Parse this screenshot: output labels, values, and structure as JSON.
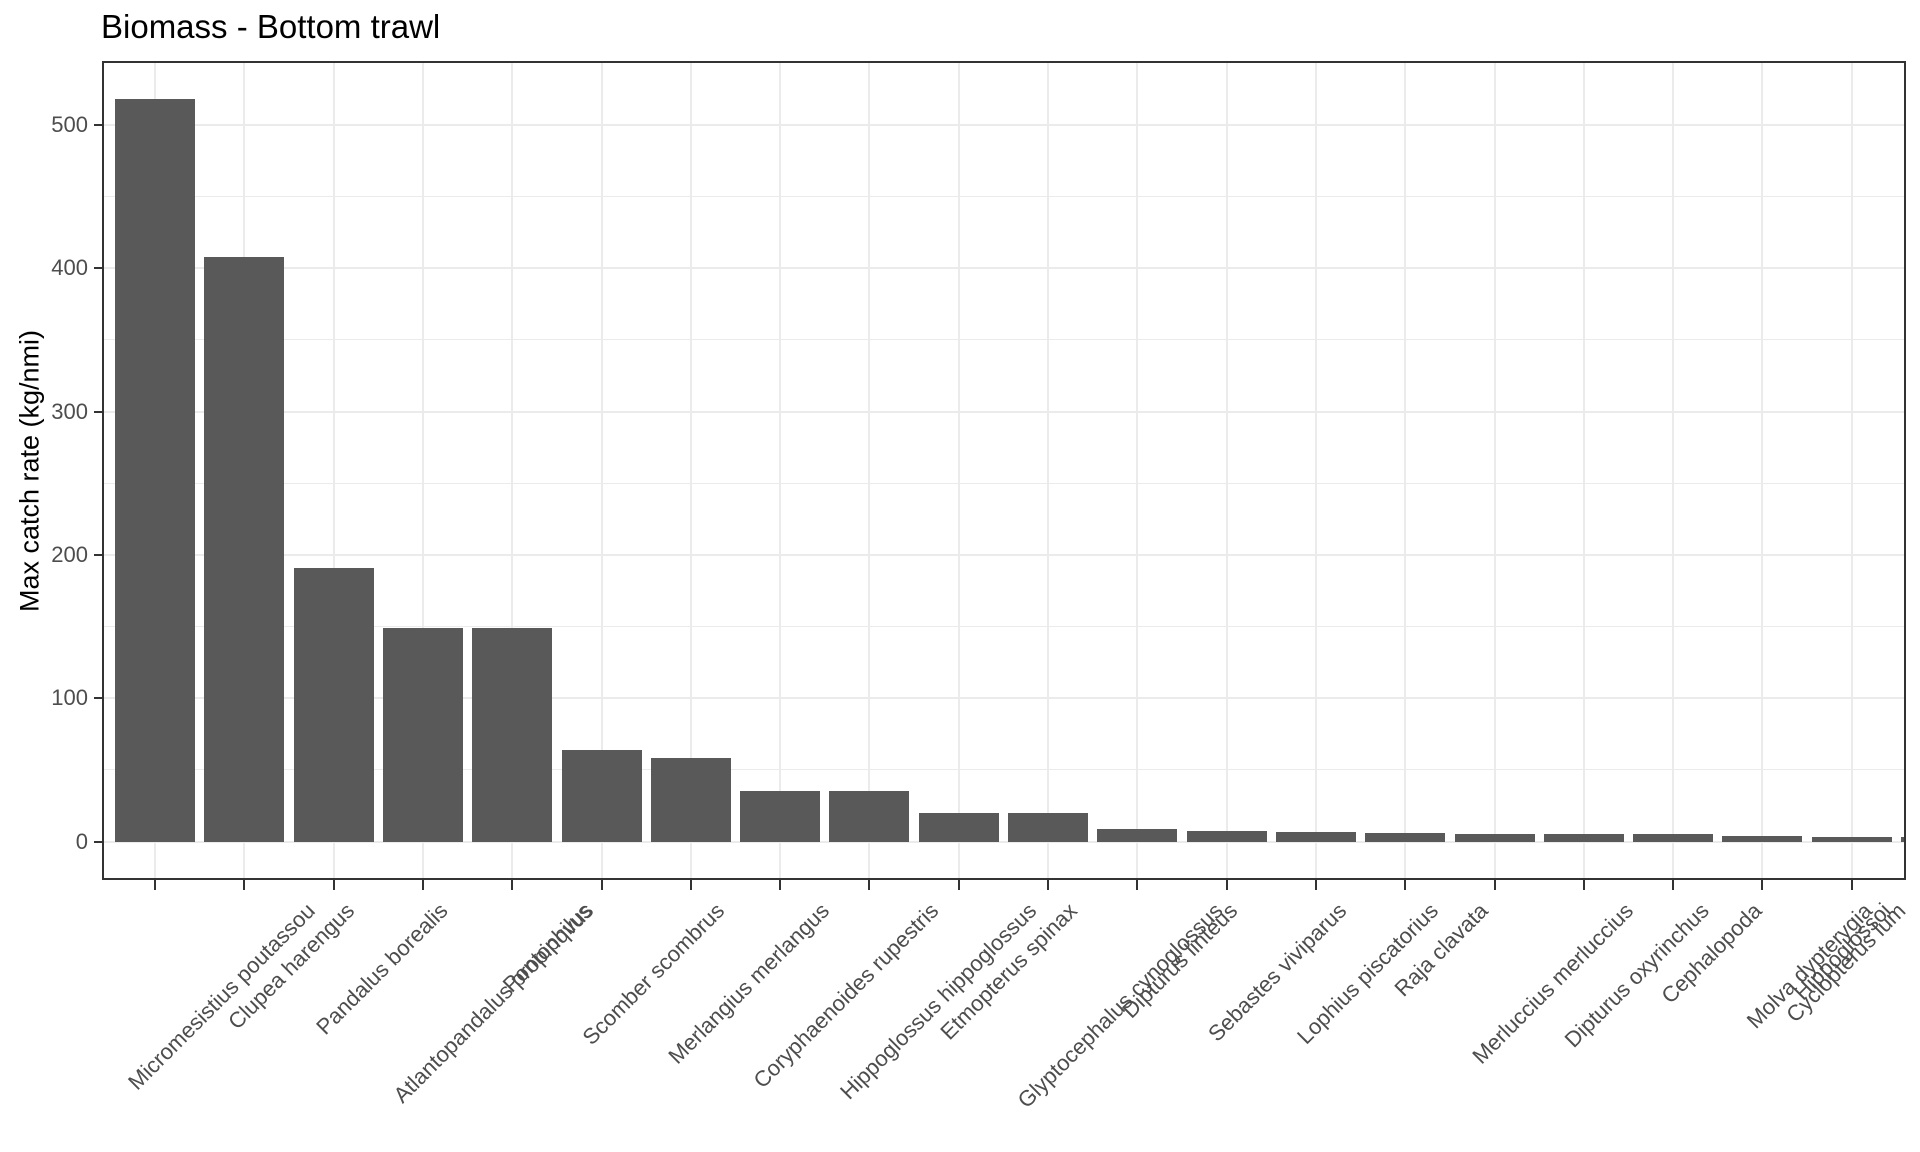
{
  "title": "Biomass - Bottom trawl",
  "y_axis_title": "Max catch rate (kg/nmi)",
  "colors": {
    "bar_fill": "#595959",
    "grid": "#ebebeb",
    "panel_border": "#333333",
    "axis_text": "#4d4d4d",
    "title_text": "#000000",
    "background": "#ffffff"
  },
  "chart_data": {
    "type": "bar",
    "title": "Biomass - Bottom trawl",
    "xlabel": "",
    "ylabel": "Max catch rate (kg/nmi)",
    "ylim": [
      -26,
      545
    ],
    "y_major_ticks": [
      0,
      100,
      200,
      300,
      400,
      500
    ],
    "y_minor_gridlines": [
      50,
      150,
      250,
      350,
      450
    ],
    "grid": "on",
    "legend": "none",
    "categories": [
      "Micromesistius poutassou",
      "Clupea harengus",
      "Pandalus borealis",
      "Atlantopandalus propinqvus",
      "Pontophilus",
      "Scomber scombrus",
      "Merlangius merlangus",
      "Coryphaenoides rupestris",
      "Hippoglossus hippoglossus",
      "Etmopterus spinax",
      "Glyptocephalus cynoglossus",
      "Dipturus linteus",
      "Sebastes viviparus",
      "Lophius piscatorius",
      "Raja clavata",
      "Merluccius merluccius",
      "Dipturus oxyrinchus",
      "Cephalopoda",
      "Molva dypterygia",
      "Cyclopterus lum",
      "Hippoglossoi"
    ],
    "values": [
      518,
      408,
      191,
      149,
      149,
      64,
      58,
      35,
      35,
      20,
      20,
      9,
      7.5,
      7,
      6,
      5.5,
      5.5,
      5,
      4,
      3.5,
      3
    ]
  }
}
